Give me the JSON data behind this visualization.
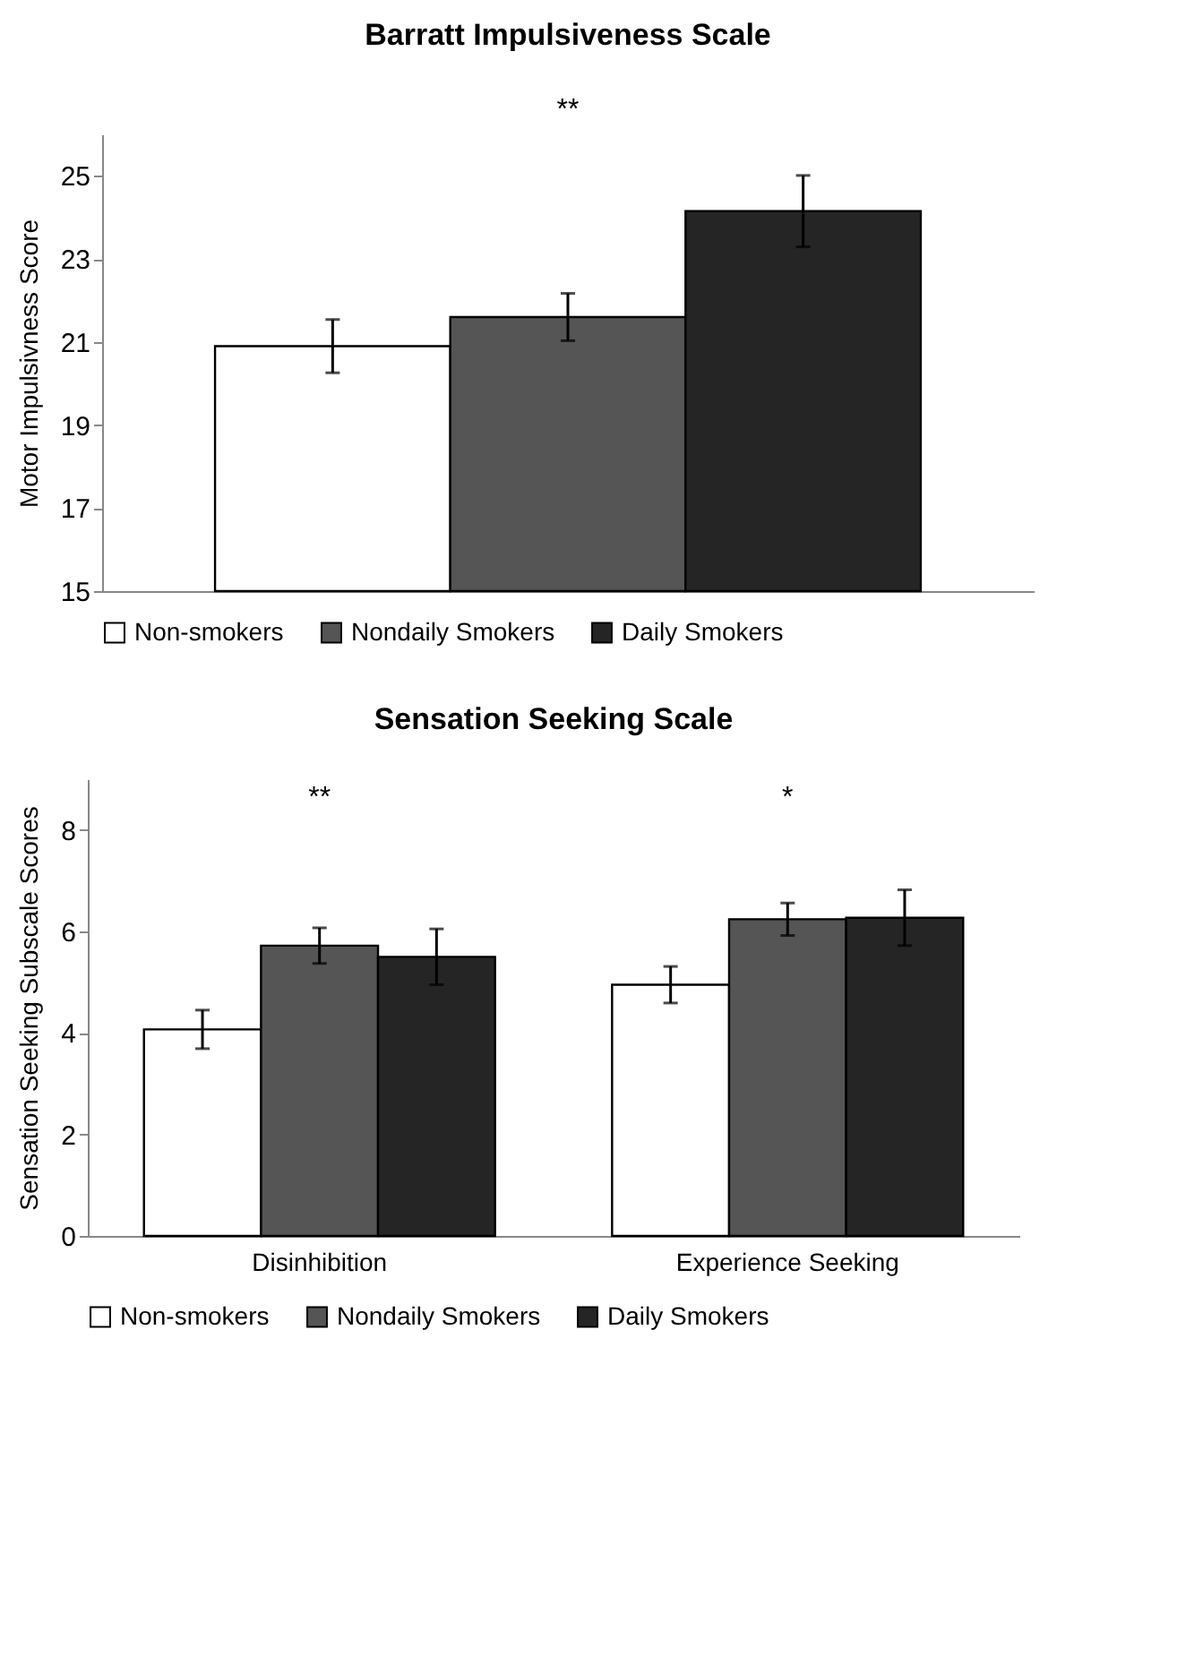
{
  "chart_data": [
    {
      "type": "bar",
      "title": "Barratt Impulsiveness Scale",
      "ylabel": "Motor Impulsivness  Score",
      "categories": [
        null
      ],
      "series": [
        {
          "name": "Non-smokers",
          "color": "#ffffff",
          "values": [
            20.9
          ],
          "errors": [
            0.64
          ]
        },
        {
          "name": "Nondaily Smokers",
          "color": "#555555",
          "values": [
            21.6
          ],
          "errors": [
            0.57
          ]
        },
        {
          "name": "Daily Smokers",
          "color": "#252525",
          "values": [
            24.15
          ],
          "errors": [
            0.86
          ]
        }
      ],
      "ylim": [
        15,
        26
      ],
      "yticks": [
        15,
        17,
        19,
        21,
        23,
        25
      ],
      "tick_labels": "y",
      "legend": "bottom",
      "grid": false,
      "annotations": [
        "**"
      ]
    },
    {
      "type": "bar",
      "title": "Sensation Seeking Scale",
      "ylabel": "Sensation Seeking Subscale Scores",
      "categories": [
        "Disinhibition",
        "Experience Seeking"
      ],
      "series": [
        {
          "name": "Non-smokers",
          "color": "#ffffff",
          "values": [
            4.07,
            4.95
          ],
          "errors": [
            0.38,
            0.36
          ]
        },
        {
          "name": "Nondaily Smokers",
          "color": "#555555",
          "values": [
            5.72,
            6.24
          ],
          "errors": [
            0.35,
            0.32
          ]
        },
        {
          "name": "Daily Smokers",
          "color": "#252525",
          "values": [
            5.5,
            6.27
          ],
          "errors": [
            0.55,
            0.55
          ]
        }
      ],
      "ylim": [
        0,
        9
      ],
      "yticks": [
        0,
        2,
        4,
        6,
        8
      ],
      "legend": "bottom",
      "grid": false,
      "annotations": [
        "**",
        "*"
      ]
    }
  ]
}
